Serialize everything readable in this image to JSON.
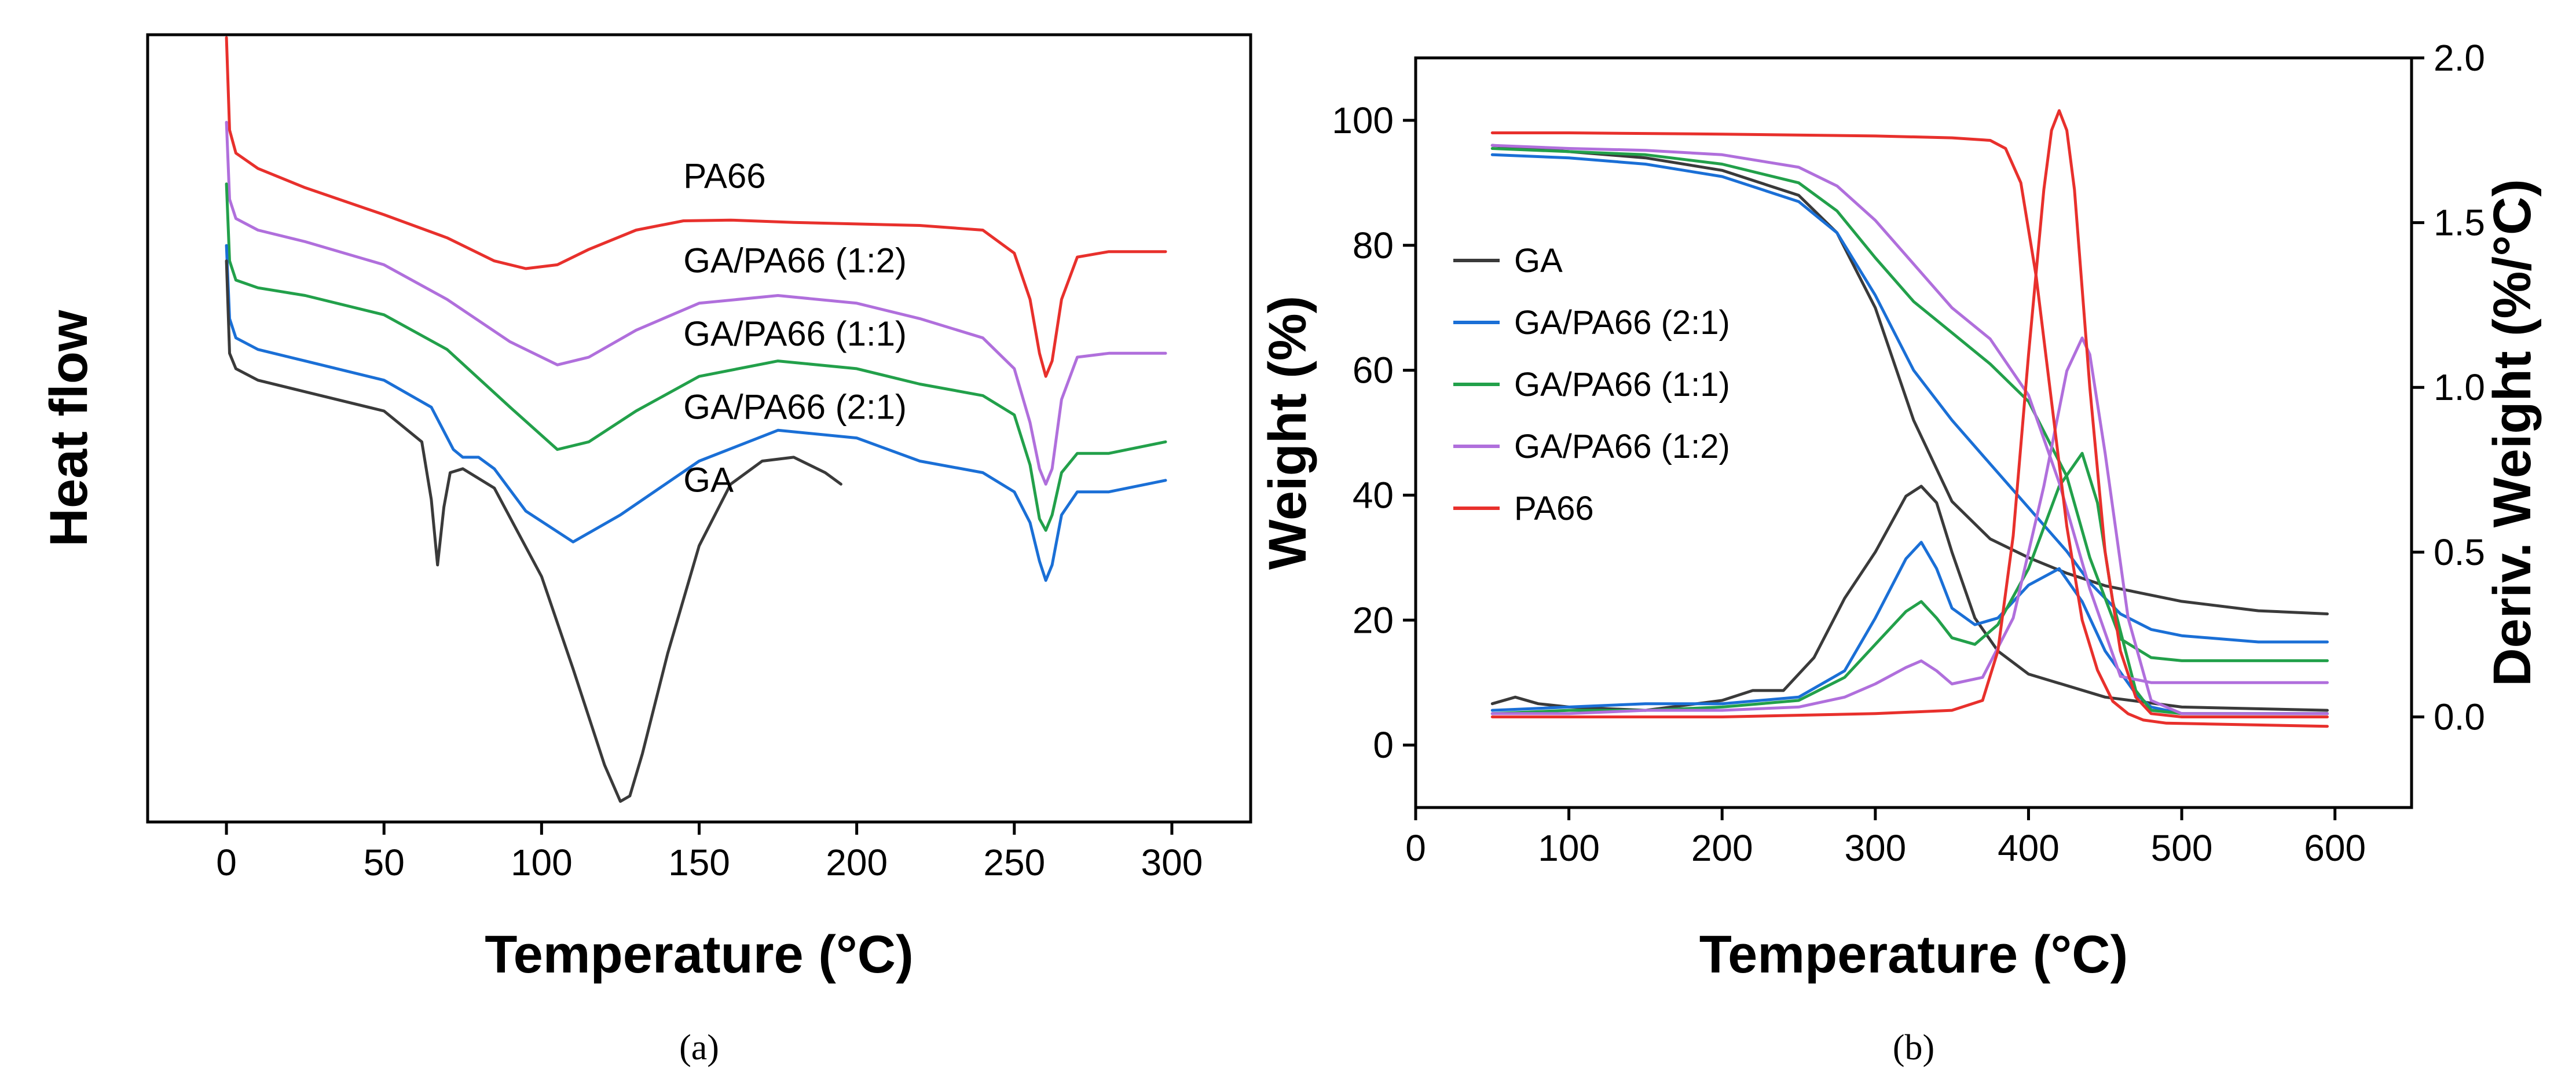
{
  "figure": {
    "panels": [
      "(a)",
      "(b)"
    ]
  },
  "chart_data": [
    {
      "type": "line",
      "panel": "(a)",
      "title": "",
      "xlabel": "Temperature (°C)",
      "ylabel": "Heat flow",
      "xlim": [
        -25,
        325
      ],
      "ylim": [
        0,
        100
      ],
      "xticks": [
        0,
        50,
        100,
        150,
        200,
        250,
        300
      ],
      "yticks_shown": false,
      "series": [
        {
          "name": "PA66",
          "color": "#e8302c",
          "x": [
            0,
            1,
            3,
            10,
            25,
            50,
            70,
            85,
            95,
            105,
            115,
            130,
            145,
            160,
            180,
            200,
            220,
            240,
            250,
            255,
            258,
            260,
            262,
            265,
            270,
            280,
            298
          ],
          "y": [
            100,
            88,
            85,
            83,
            80.5,
            77,
            74,
            71,
            70,
            70.5,
            72.5,
            75,
            76.2,
            76.3,
            76,
            75.8,
            75.6,
            75,
            72,
            66,
            59,
            56,
            58,
            66,
            71.5,
            72.2,
            72.2
          ]
        },
        {
          "name": "GA/PA66 (1:2)",
          "color": "#b06fdc",
          "x": [
            0,
            1,
            3,
            10,
            25,
            50,
            70,
            90,
            105,
            115,
            130,
            150,
            175,
            200,
            220,
            240,
            250,
            255,
            258,
            260,
            262,
            265,
            270,
            280,
            298
          ],
          "y": [
            89,
            79,
            76.5,
            75,
            73.5,
            70.5,
            66,
            60.5,
            57.5,
            58.5,
            62,
            65.5,
            66.5,
            65.5,
            63.5,
            61,
            57,
            50,
            44,
            42,
            44,
            53,
            58.5,
            59,
            59
          ]
        },
        {
          "name": "GA/PA66 (1:1)",
          "color": "#22a04a",
          "x": [
            0,
            1,
            3,
            10,
            25,
            50,
            70,
            90,
            105,
            115,
            130,
            150,
            175,
            200,
            220,
            240,
            250,
            255,
            258,
            260,
            262,
            265,
            270,
            280,
            298
          ],
          "y": [
            81,
            71,
            68.5,
            67.5,
            66.5,
            64,
            59.5,
            52,
            46.5,
            47.5,
            51.5,
            56,
            58,
            57,
            55,
            53.5,
            51,
            44.5,
            37.5,
            36,
            38,
            43.5,
            46,
            46,
            47.5
          ]
        },
        {
          "name": "GA/PA66 (2:1)",
          "color": "#1a6fd6",
          "x": [
            0,
            1,
            3,
            10,
            25,
            50,
            65,
            72,
            75,
            80,
            85,
            95,
            110,
            125,
            150,
            175,
            200,
            220,
            240,
            250,
            255,
            258,
            260,
            262,
            265,
            270,
            280,
            298
          ],
          "y": [
            73,
            63.5,
            61,
            59.5,
            58,
            55.5,
            52,
            46.5,
            45.5,
            45.5,
            44,
            38.5,
            34.5,
            38,
            45,
            49,
            48,
            45,
            43.5,
            41,
            37,
            32,
            29.5,
            31.5,
            38,
            41,
            41,
            42.5
          ]
        },
        {
          "name": "GA",
          "color": "#3a3a3a",
          "x": [
            0,
            1,
            3,
            10,
            25,
            50,
            62,
            65,
            67,
            69,
            71,
            75,
            85,
            100,
            110,
            120,
            125,
            128,
            132,
            140,
            150,
            160,
            170,
            180,
            190,
            195
          ],
          "y": [
            71,
            59,
            57,
            55.5,
            54,
            51.5,
            47.5,
            40,
            31.5,
            39,
            43.5,
            44,
            41.5,
            30,
            18,
            5.5,
            0.8,
            1.5,
            7,
            20,
            34,
            42,
            45,
            45.5,
            43.5,
            42
          ]
        }
      ],
      "annotations": [
        {
          "text": "PA66",
          "x": 145,
          "y": 80.5
        },
        {
          "text": "GA/PA66 (1:2)",
          "x": 145,
          "y": 69.5
        },
        {
          "text": "GA/PA66 (1:1)",
          "x": 145,
          "y": 60
        },
        {
          "text": "GA/PA66 (2:1)",
          "x": 145,
          "y": 50.5
        },
        {
          "text": "GA",
          "x": 145,
          "y": 41
        }
      ]
    },
    {
      "type": "line",
      "panel": "(b)",
      "title": "",
      "xlabel": "Temperature (°C)",
      "ylabel": "Weight (%)",
      "ylabel_right": "Deriv. Weight (%/°C)",
      "xlim": [
        0,
        650
      ],
      "ylim": [
        -10,
        110
      ],
      "ylim_right": [
        -0.275,
        2.0
      ],
      "xticks": [
        0,
        100,
        200,
        300,
        400,
        500,
        600
      ],
      "yticks": [
        0,
        20,
        40,
        60,
        80,
        100
      ],
      "yticks_right": [
        0.0,
        0.5,
        1.0,
        1.5,
        2.0
      ],
      "legend": {
        "location": "center-left",
        "entries": [
          "GA",
          "GA/PA66 (2:1)",
          "GA/PA66 (1:1)",
          "GA/PA66 (1:2)",
          "PA66"
        ]
      },
      "series": [
        {
          "name": "GA",
          "color": "#3a3a3a",
          "weight": {
            "x": [
              50,
              100,
              150,
              200,
              250,
              275,
              300,
              325,
              350,
              375,
              400,
              425,
              450,
              500,
              550,
              595
            ],
            "y": [
              96,
              95,
              94,
              92,
              88,
              82,
              70,
              52,
              39,
              33,
              30,
              27.5,
              25.5,
              23,
              21.5,
              21
            ]
          },
          "deriv": {
            "x": [
              50,
              65,
              80,
              100,
              150,
              200,
              220,
              240,
              260,
              280,
              300,
              320,
              330,
              340,
              350,
              365,
              380,
              400,
              450,
              500,
              595
            ],
            "y": [
              0.04,
              0.06,
              0.04,
              0.03,
              0.02,
              0.05,
              0.08,
              0.08,
              0.18,
              0.36,
              0.5,
              0.67,
              0.7,
              0.65,
              0.5,
              0.3,
              0.2,
              0.13,
              0.06,
              0.03,
              0.02
            ]
          }
        },
        {
          "name": "GA/PA66 (2:1)",
          "color": "#1a6fd6",
          "weight": {
            "x": [
              50,
              100,
              150,
              200,
              250,
              275,
              300,
              325,
              350,
              375,
              400,
              425,
              440,
              460,
              480,
              500,
              550,
              595
            ],
            "y": [
              94.5,
              94,
              93,
              91,
              87,
              82,
              72,
              60,
              52,
              45,
              38,
              31,
              26,
              21,
              18.5,
              17.5,
              16.5,
              16.5
            ]
          },
          "deriv": {
            "x": [
              50,
              100,
              150,
              200,
              250,
              280,
              300,
              320,
              330,
              340,
              350,
              365,
              380,
              400,
              420,
              435,
              450,
              470,
              480,
              500,
              595
            ],
            "y": [
              0.02,
              0.03,
              0.04,
              0.04,
              0.06,
              0.14,
              0.3,
              0.48,
              0.53,
              0.45,
              0.33,
              0.28,
              0.3,
              0.4,
              0.45,
              0.35,
              0.2,
              0.07,
              0.03,
              0.01,
              0.01
            ]
          }
        },
        {
          "name": "GA/PA66 (1:1)",
          "color": "#22a04a",
          "weight": {
            "x": [
              50,
              100,
              150,
              200,
              250,
              275,
              300,
              325,
              350,
              375,
              400,
              425,
              440,
              460,
              480,
              500,
              550,
              595
            ],
            "y": [
              95.5,
              95,
              94.5,
              93,
              90,
              85.5,
              78,
              71,
              66,
              61,
              55,
              43,
              30,
              17,
              14,
              13.5,
              13.5,
              13.5
            ]
          },
          "deriv": {
            "x": [
              50,
              100,
              150,
              200,
              250,
              280,
              300,
              320,
              330,
              340,
              350,
              365,
              380,
              400,
              420,
              435,
              445,
              455,
              470,
              480,
              500,
              595
            ],
            "y": [
              0.01,
              0.02,
              0.02,
              0.03,
              0.05,
              0.12,
              0.22,
              0.32,
              0.35,
              0.3,
              0.24,
              0.22,
              0.28,
              0.45,
              0.7,
              0.8,
              0.65,
              0.35,
              0.08,
              0.02,
              0.01,
              0.01
            ]
          }
        },
        {
          "name": "GA/PA66 (1:2)",
          "color": "#b06fdc",
          "weight": {
            "x": [
              50,
              100,
              150,
              200,
              250,
              275,
              300,
              325,
              350,
              375,
              400,
              420,
              440,
              460,
              480,
              500,
              550,
              595
            ],
            "y": [
              96,
              95.5,
              95.2,
              94.5,
              92.5,
              89.5,
              84,
              77,
              70,
              65,
              56,
              42,
              25,
              11,
              10,
              10,
              10,
              10
            ]
          },
          "deriv": {
            "x": [
              50,
              100,
              150,
              200,
              250,
              280,
              300,
              320,
              330,
              340,
              350,
              370,
              390,
              410,
              425,
              435,
              440,
              450,
              465,
              480,
              500,
              595
            ],
            "y": [
              0.01,
              0.01,
              0.02,
              0.02,
              0.03,
              0.06,
              0.1,
              0.15,
              0.17,
              0.14,
              0.1,
              0.12,
              0.3,
              0.7,
              1.05,
              1.15,
              1.1,
              0.8,
              0.3,
              0.05,
              0.01,
              0.01
            ]
          }
        },
        {
          "name": "PA66",
          "color": "#e8302c",
          "weight": {
            "x": [
              50,
              100,
              200,
              300,
              350,
              375,
              385,
              395,
              405,
              415,
              425,
              435,
              445,
              455,
              465,
              475,
              490,
              595
            ],
            "y": [
              98,
              98,
              97.8,
              97.5,
              97.2,
              96.8,
              95.5,
              90,
              75,
              55,
              35,
              20,
              12,
              7,
              5,
              4,
              3.5,
              3
            ]
          },
          "deriv": {
            "x": [
              50,
              100,
              200,
              300,
              350,
              370,
              380,
              390,
              400,
              410,
              415,
              420,
              425,
              430,
              440,
              450,
              460,
              470,
              480,
              500,
              595
            ],
            "y": [
              0.0,
              0.0,
              0.0,
              0.01,
              0.02,
              0.05,
              0.2,
              0.55,
              1.1,
              1.6,
              1.78,
              1.84,
              1.78,
              1.6,
              1.0,
              0.5,
              0.2,
              0.06,
              0.01,
              0.0,
              0.0
            ]
          }
        }
      ]
    }
  ]
}
